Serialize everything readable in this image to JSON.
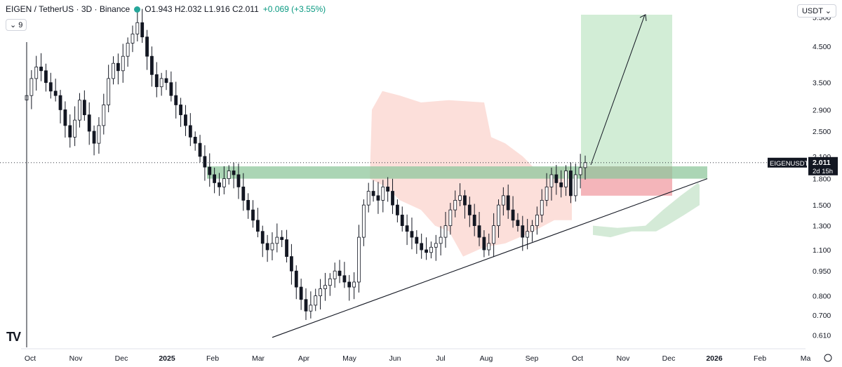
{
  "header": {
    "symbol": "EIGEN / TetherUS · 3D · Binance",
    "ohlc": "O1.943 H2.032 L1.916 C2.011",
    "change": "+0.069 (+3.55%)",
    "status_color": "#26a69a",
    "indicator_badge": "9",
    "currency_selector": "USDT"
  },
  "logo_text": "TV",
  "chart_data": {
    "type": "candlestick",
    "y_scale": "log",
    "ylim": [
      0.56,
      6.2
    ],
    "y_ticks": [
      "5.500",
      "4.500",
      "3.500",
      "2.900",
      "2.500",
      "2.100",
      "1.800",
      "1.500",
      "1.300",
      "1.100",
      "0.950",
      "0.800",
      "0.700",
      "0.610"
    ],
    "x_ticks": [
      "Oct",
      "Nov",
      "Dec",
      "2025",
      "Feb",
      "Mar",
      "Apr",
      "May",
      "Jun",
      "Jul",
      "Aug",
      "Sep",
      "Oct",
      "Nov",
      "Dec",
      "2026",
      "Feb",
      "Ma"
    ],
    "price_label": {
      "symbol": "EIGENUSDT",
      "price": "2.011",
      "countdown": "2d 15h",
      "value": 2.011
    },
    "close_prices": [
      3.2,
      3.6,
      3.9,
      3.8,
      3.5,
      3.3,
      3.2,
      2.9,
      2.6,
      2.4,
      2.7,
      3.1,
      2.8,
      2.5,
      2.3,
      2.6,
      3.0,
      3.6,
      4.0,
      3.8,
      4.2,
      4.6,
      4.9,
      5.3,
      4.8,
      4.2,
      3.7,
      3.4,
      3.6,
      3.5,
      3.2,
      3.0,
      2.8,
      2.6,
      2.4,
      2.3,
      2.1,
      1.95,
      1.85,
      1.75,
      1.7,
      1.8,
      1.9,
      1.85,
      1.7,
      1.55,
      1.45,
      1.35,
      1.25,
      1.15,
      1.1,
      1.15,
      1.2,
      1.18,
      1.05,
      0.95,
      0.85,
      0.78,
      0.72,
      0.75,
      0.8,
      0.84,
      0.86,
      0.9,
      0.95,
      0.92,
      0.88,
      0.85,
      0.88,
      1.2,
      1.5,
      1.65,
      1.6,
      1.55,
      1.7,
      1.65,
      1.5,
      1.4,
      1.3,
      1.25,
      1.2,
      1.15,
      1.1,
      1.08,
      1.12,
      1.15,
      1.2,
      1.3,
      1.45,
      1.55,
      1.6,
      1.5,
      1.4,
      1.3,
      1.2,
      1.1,
      1.15,
      1.3,
      1.5,
      1.6,
      1.45,
      1.35,
      1.3,
      1.2,
      1.25,
      1.3,
      1.4,
      1.55,
      1.7,
      1.85,
      1.75,
      1.7,
      1.9,
      1.6,
      1.85,
      1.943,
      2.011
    ],
    "annotations": {
      "resistance_zone": [
        1.8,
        1.96
      ],
      "target_zone": [
        1.96,
        5.6
      ],
      "stop_zone": [
        1.6,
        1.96
      ],
      "trendline": [
        [
          0.6,
          "Mar"
        ],
        [
          1.8,
          "Dec"
        ]
      ],
      "arrow_target": 5.6
    },
    "colors": {
      "up": "#26a69a",
      "down": "#131722",
      "resistance": "#8fc79c",
      "target": "#cdebd2",
      "stop": "#f2a8ae",
      "cloud_red": "#fbd9d3",
      "cloud_green": "#cfe8d3"
    }
  }
}
